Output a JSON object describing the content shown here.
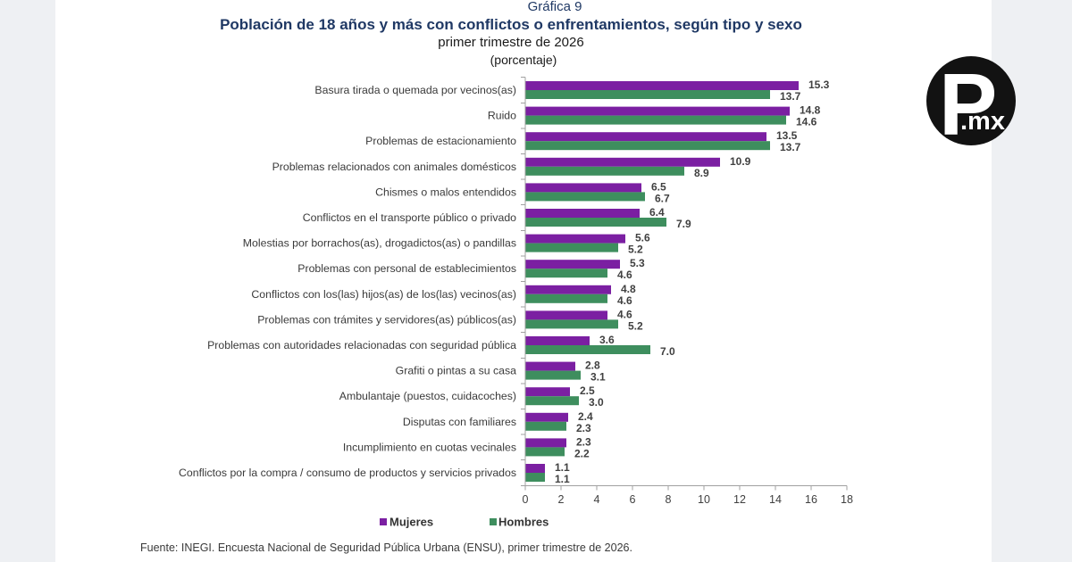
{
  "chart_data": {
    "type": "bar",
    "orientation": "horizontal",
    "figure_label": "Gráfica 9",
    "title": "Población de 18 años y más con conflictos o enfrentamientos, según tipo y sexo",
    "subtitle": "primer trimestre de 2026",
    "unit_label": "(porcentaje)",
    "xlim": [
      0,
      18
    ],
    "xticks": [
      0,
      2,
      4,
      6,
      8,
      10,
      12,
      14,
      16,
      18
    ],
    "grid": false,
    "data_labels": true,
    "legend_position": "bottom",
    "categories": [
      "Basura tirada o quemada por vecinos(as)",
      "Ruido",
      "Problemas de estacionamiento",
      "Problemas relacionados con animales domésticos",
      "Chismes o malos entendidos",
      "Conflictos en el transporte público o privado",
      "Molestias por borrachos(as), drogadictos(as) o pandillas",
      "Problemas con personal de establecimientos",
      "Conflictos con los(las) hijos(as) de los(las) vecinos(as)",
      "Problemas con trámites y servidores(as) públicos(as)",
      "Problemas con autoridades relacionadas con seguridad pública",
      "Grafiti o pintas a su casa",
      "Ambulantaje (puestos, cuidacoches)",
      "Disputas con familiares",
      "Incumplimiento en cuotas vecinales",
      "Conflictos por la compra / consumo de productos y servicios privados"
    ],
    "series": [
      {
        "name": "Mujeres",
        "color": "#7b1fa2",
        "values": [
          15.3,
          14.8,
          13.5,
          10.9,
          6.5,
          6.4,
          5.6,
          5.3,
          4.8,
          4.6,
          3.6,
          2.8,
          2.5,
          2.4,
          2.3,
          1.1
        ]
      },
      {
        "name": "Hombres",
        "color": "#3e8e5e",
        "values": [
          13.7,
          14.6,
          13.7,
          8.9,
          6.7,
          7.9,
          5.2,
          4.6,
          4.6,
          5.2,
          7.0,
          3.1,
          3.0,
          2.3,
          2.2,
          1.1
        ]
      }
    ]
  },
  "source": "Fuente: INEGI. Encuesta Nacional de Seguridad Pública Urbana (ENSU), primer trimestre de 2026.",
  "logo": {
    "letter": "P",
    "suffix": ".mx"
  }
}
